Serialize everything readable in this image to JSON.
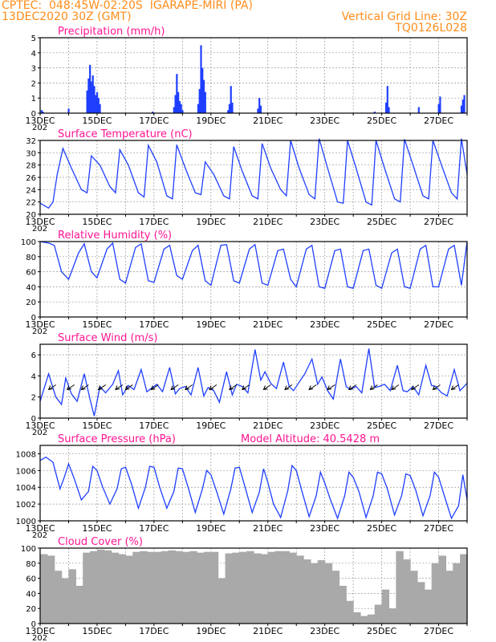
{
  "header": {
    "line1_left": "CPTEC:  048:45W-02:20S  IGARAPE-MIRI (PA)",
    "line2_left": "13DEC2020 30Z (GMT)",
    "line1_right": "Vertical Grid Line: 30Z",
    "line2_right": "TQ0126L028"
  },
  "colors": {
    "header": "#ff8c1a",
    "title": "#ff1493",
    "series": "#1f3fff",
    "cloud": "#a9a9a9",
    "grid": "#999999"
  },
  "chart_data": [
    {
      "type": "bar",
      "title": "Precipitation (mm/h)",
      "ylim": [
        0,
        5
      ],
      "yticks": [
        0,
        1,
        2,
        3,
        4,
        5
      ],
      "x_date_labels": [
        "13DEC",
        "15DEC",
        "17DEC",
        "19DEC",
        "21DEC",
        "23DEC",
        "25DEC",
        "27DEC"
      ],
      "x_sub_label": "202",
      "x_range_days": [
        0,
        15
      ],
      "x": [
        0.05,
        0.1,
        1.0,
        1.65,
        1.7,
        1.75,
        1.8,
        1.85,
        1.9,
        1.95,
        2.0,
        2.05,
        2.1,
        3.95,
        4.7,
        4.75,
        4.8,
        4.85,
        4.9,
        4.95,
        5.0,
        5.55,
        5.6,
        5.65,
        5.7,
        5.75,
        5.8,
        6.6,
        6.65,
        6.7,
        6.75,
        7.65,
        7.7,
        7.75,
        11.75,
        12.15,
        12.2,
        12.25,
        13.3,
        14.0,
        14.05,
        14.8,
        14.85,
        14.9
      ],
      "values": [
        0.2,
        0.1,
        0.3,
        1.5,
        2.3,
        3.2,
        2.1,
        2.5,
        1.8,
        1.2,
        1.4,
        1.0,
        0.6,
        0.1,
        0.4,
        1.2,
        2.6,
        1.4,
        0.8,
        0.6,
        0.2,
        0.6,
        1.6,
        4.5,
        3.0,
        2.2,
        1.4,
        0.2,
        0.6,
        1.8,
        0.7,
        0.3,
        1.0,
        0.5,
        0.1,
        0.7,
        1.8,
        0.4,
        0.4,
        0.6,
        1.1,
        0.5,
        0.9,
        1.2
      ]
    },
    {
      "type": "line",
      "title": "Surface Temperature (nC)",
      "ylim": [
        20,
        32
      ],
      "yticks": [
        20,
        22,
        24,
        26,
        28,
        30,
        32
      ],
      "x_date_labels": [
        "13DEC",
        "15DEC",
        "17DEC",
        "19DEC",
        "21DEC",
        "23DEC",
        "25DEC",
        "27DEC"
      ],
      "x_sub_label": "202",
      "x_range_days": [
        0,
        15
      ],
      "x": [
        0.0,
        0.3,
        0.45,
        0.6,
        0.8,
        1.1,
        1.45,
        1.65,
        1.8,
        2.1,
        2.45,
        2.65,
        2.8,
        3.1,
        3.45,
        3.65,
        3.8,
        4.1,
        4.45,
        4.65,
        4.8,
        5.1,
        5.45,
        5.65,
        5.8,
        6.1,
        6.45,
        6.65,
        6.8,
        7.1,
        7.45,
        7.65,
        7.8,
        8.1,
        8.45,
        8.65,
        8.8,
        9.1,
        9.45,
        9.65,
        9.8,
        10.1,
        10.45,
        10.65,
        10.8,
        11.1,
        11.45,
        11.65,
        11.8,
        12.1,
        12.45,
        12.65,
        12.8,
        13.1,
        13.45,
        13.65,
        13.8,
        14.1,
        14.45,
        14.65,
        14.8,
        15.0
      ],
      "values": [
        21.8,
        21.0,
        22.0,
        26.5,
        30.7,
        27.5,
        24.0,
        23.5,
        29.5,
        28.0,
        24.5,
        23.5,
        30.5,
        28.0,
        23.5,
        22.8,
        31.2,
        28.5,
        23.0,
        22.5,
        31.3,
        27.5,
        23.5,
        23.2,
        28.5,
        26.5,
        23.0,
        22.5,
        31.0,
        27.0,
        23.0,
        22.5,
        31.5,
        27.5,
        24.0,
        23.0,
        32.0,
        27.5,
        23.2,
        22.5,
        32.3,
        27.5,
        22.0,
        21.8,
        32.0,
        27.5,
        22.0,
        21.5,
        32.0,
        27.5,
        22.5,
        22.0,
        32.2,
        28.0,
        23.0,
        22.5,
        32.0,
        28.0,
        23.5,
        22.5,
        32.3,
        26.5
      ]
    },
    {
      "type": "line",
      "title": "Relative Humidity (%)",
      "ylim": [
        0,
        100
      ],
      "yticks": [
        0,
        20,
        40,
        60,
        80,
        100
      ],
      "x_date_labels": [
        "13DEC",
        "15DEC",
        "17DEC",
        "19DEC",
        "21DEC",
        "23DEC",
        "25DEC",
        "27DEC"
      ],
      "x_sub_label": "202",
      "x_range_days": [
        0,
        15
      ],
      "x": [
        0.0,
        0.3,
        0.5,
        0.75,
        1.0,
        1.35,
        1.55,
        1.8,
        2.0,
        2.35,
        2.55,
        2.8,
        3.0,
        3.35,
        3.55,
        3.8,
        4.0,
        4.35,
        4.55,
        4.8,
        5.0,
        5.35,
        5.55,
        5.8,
        6.0,
        6.35,
        6.55,
        6.8,
        7.0,
        7.35,
        7.55,
        7.8,
        8.0,
        8.35,
        8.55,
        8.8,
        9.0,
        9.35,
        9.55,
        9.8,
        10.0,
        10.35,
        10.55,
        10.8,
        11.0,
        11.35,
        11.55,
        11.8,
        12.0,
        12.35,
        12.55,
        12.8,
        13.0,
        13.35,
        13.55,
        13.8,
        14.0,
        14.35,
        14.55,
        14.8,
        15.0
      ],
      "values": [
        100,
        98,
        95,
        60,
        50,
        85,
        97,
        60,
        52,
        90,
        98,
        50,
        45,
        92,
        97,
        48,
        46,
        90,
        95,
        55,
        50,
        88,
        95,
        48,
        42,
        95,
        96,
        48,
        45,
        90,
        96,
        45,
        42,
        88,
        90,
        50,
        40,
        90,
        95,
        40,
        38,
        88,
        90,
        40,
        38,
        88,
        90,
        42,
        38,
        85,
        90,
        40,
        38,
        90,
        95,
        40,
        40,
        90,
        95,
        42,
        100
      ]
    },
    {
      "type": "line",
      "title": "Surface Wind (m/s)",
      "ylim": [
        0,
        7
      ],
      "yticks": [
        0,
        2,
        4,
        6
      ],
      "x_date_labels": [
        "13DEC",
        "15DEC",
        "17DEC",
        "19DEC",
        "21DEC",
        "23DEC",
        "25DEC",
        "27DEC"
      ],
      "x_sub_label": "202",
      "x_range_days": [
        0,
        15
      ],
      "x": [
        0.0,
        0.3,
        0.55,
        0.75,
        0.9,
        1.1,
        1.3,
        1.55,
        1.75,
        1.9,
        2.1,
        2.3,
        2.55,
        2.75,
        2.9,
        3.1,
        3.3,
        3.55,
        3.75,
        3.9,
        4.1,
        4.3,
        4.55,
        4.75,
        4.9,
        5.1,
        5.3,
        5.55,
        5.75,
        5.9,
        6.1,
        6.3,
        6.55,
        6.75,
        6.9,
        7.1,
        7.3,
        7.55,
        7.75,
        7.9,
        8.1,
        8.3,
        8.55,
        8.75,
        8.9,
        9.1,
        9.3,
        9.55,
        9.75,
        9.9,
        10.1,
        10.3,
        10.55,
        10.75,
        10.9,
        11.1,
        11.3,
        11.55,
        11.75,
        11.9,
        12.1,
        12.3,
        12.55,
        12.75,
        12.9,
        13.1,
        13.3,
        13.55,
        13.75,
        13.9,
        14.1,
        14.3,
        14.55,
        14.75,
        15.0
      ],
      "values": [
        1.6,
        4.2,
        2.0,
        1.3,
        3.8,
        2.3,
        1.6,
        4.2,
        1.8,
        0.2,
        3.0,
        2.4,
        3.2,
        4.5,
        2.2,
        3.1,
        2.7,
        4.6,
        2.5,
        2.8,
        3.2,
        2.5,
        4.8,
        2.3,
        2.8,
        3.0,
        2.2,
        4.8,
        2.1,
        2.9,
        2.6,
        1.5,
        4.4,
        2.2,
        3.2,
        3.0,
        2.4,
        6.5,
        3.6,
        4.4,
        3.3,
        2.8,
        5.3,
        3.0,
        2.6,
        3.4,
        4.2,
        5.6,
        3.2,
        3.9,
        2.6,
        1.8,
        5.6,
        3.0,
        2.7,
        3.0,
        2.4,
        6.6,
        2.9,
        3.0,
        3.2,
        2.6,
        5.0,
        2.6,
        2.5,
        3.0,
        2.2,
        5.0,
        3.1,
        3.0,
        2.4,
        2.1,
        4.6,
        2.6,
        3.3
      ],
      "arrow_x_days": [
        0.3,
        0.95,
        1.45,
        2.05,
        2.65,
        3.0,
        3.9,
        4.6,
        5.1,
        5.95,
        6.65,
        7.1,
        7.85,
        8.6,
        9.45,
        10.1,
        10.85,
        11.6,
        12.35,
        13.05,
        13.8,
        14.45
      ]
    },
    {
      "type": "line",
      "title": "Surface Pressure (hPa)",
      "annotation": "Model Altitude: 40.5428 m",
      "ylim": [
        1000,
        1009
      ],
      "yticks": [
        1000,
        1002,
        1004,
        1006,
        1008
      ],
      "x_date_labels": [
        "13DEC",
        "15DEC",
        "17DEC",
        "19DEC",
        "21DEC",
        "23DEC",
        "25DEC",
        "27DEC"
      ],
      "x_sub_label": "202",
      "x_range_days": [
        0,
        15
      ],
      "x": [
        0.0,
        0.2,
        0.45,
        0.7,
        0.85,
        1.0,
        1.2,
        1.45,
        1.7,
        1.85,
        2.0,
        2.2,
        2.45,
        2.7,
        2.85,
        3.0,
        3.2,
        3.45,
        3.7,
        3.85,
        4.0,
        4.2,
        4.45,
        4.7,
        4.85,
        5.0,
        5.2,
        5.45,
        5.7,
        5.85,
        6.0,
        6.2,
        6.45,
        6.7,
        6.85,
        7.0,
        7.2,
        7.45,
        7.7,
        7.85,
        8.0,
        8.2,
        8.45,
        8.7,
        8.85,
        9.0,
        9.2,
        9.45,
        9.7,
        9.85,
        10.0,
        10.2,
        10.45,
        10.7,
        10.85,
        11.0,
        11.2,
        11.45,
        11.7,
        11.85,
        12.0,
        12.2,
        12.45,
        12.7,
        12.85,
        13.0,
        13.2,
        13.45,
        13.7,
        13.85,
        14.0,
        14.2,
        14.45,
        14.7,
        14.85,
        15.0
      ],
      "values": [
        1007.2,
        1007.6,
        1007.0,
        1003.8,
        1005.2,
        1006.8,
        1005.0,
        1002.5,
        1003.5,
        1006.5,
        1006.0,
        1004.0,
        1002.0,
        1003.8,
        1006.2,
        1006.4,
        1004.5,
        1001.5,
        1004.0,
        1006.5,
        1006.4,
        1004.0,
        1001.5,
        1003.5,
        1006.3,
        1006.2,
        1004.0,
        1001.0,
        1003.8,
        1006.0,
        1005.5,
        1003.5,
        1000.8,
        1003.8,
        1006.3,
        1006.4,
        1004.0,
        1001.0,
        1003.4,
        1006.2,
        1004.6,
        1002.0,
        1000.4,
        1003.6,
        1006.6,
        1006.0,
        1003.5,
        1000.5,
        1003.0,
        1005.8,
        1004.5,
        1002.5,
        1000.3,
        1003.0,
        1005.8,
        1005.2,
        1003.5,
        1000.4,
        1003.0,
        1005.8,
        1005.6,
        1003.8,
        1000.7,
        1003.0,
        1005.6,
        1005.4,
        1003.6,
        1000.6,
        1003.0,
        1005.8,
        1005.2,
        1003.0,
        1000.3,
        1001.8,
        1005.5,
        1002.5
      ]
    },
    {
      "type": "bar",
      "title": "Cloud Cover (%)",
      "ylim": [
        0,
        100
      ],
      "yticks": [
        0,
        20,
        40,
        60,
        80,
        100
      ],
      "x_date_labels": [
        "13DEC",
        "15DEC",
        "17DEC",
        "19DEC",
        "21DEC",
        "23DEC",
        "25DEC",
        "27DEC"
      ],
      "x_sub_label": "202",
      "x_range_days": [
        0,
        15
      ],
      "x": [
        0.0,
        0.25,
        0.5,
        0.75,
        1.0,
        1.25,
        1.5,
        1.75,
        2.0,
        2.25,
        2.5,
        2.75,
        3.0,
        3.25,
        3.5,
        3.75,
        4.0,
        4.25,
        4.5,
        4.75,
        5.0,
        5.25,
        5.5,
        5.75,
        6.0,
        6.25,
        6.5,
        6.75,
        7.0,
        7.25,
        7.5,
        7.75,
        8.0,
        8.25,
        8.5,
        8.75,
        9.0,
        9.25,
        9.5,
        9.75,
        10.0,
        10.25,
        10.5,
        10.75,
        11.0,
        11.25,
        11.5,
        11.75,
        12.0,
        12.25,
        12.5,
        12.75,
        13.0,
        13.25,
        13.5,
        13.75,
        14.0,
        14.25,
        14.5,
        14.75
      ],
      "values": [
        92,
        90,
        70,
        60,
        72,
        50,
        94,
        96,
        98,
        97,
        94,
        92,
        90,
        95,
        96,
        95,
        95,
        96,
        97,
        96,
        95,
        96,
        94,
        95,
        95,
        60,
        93,
        94,
        95,
        96,
        93,
        92,
        95,
        96,
        96,
        94,
        90,
        85,
        80,
        84,
        80,
        70,
        50,
        30,
        15,
        10,
        12,
        25,
        45,
        20,
        96,
        85,
        70,
        55,
        45,
        80,
        90,
        70,
        80,
        92
      ]
    }
  ]
}
